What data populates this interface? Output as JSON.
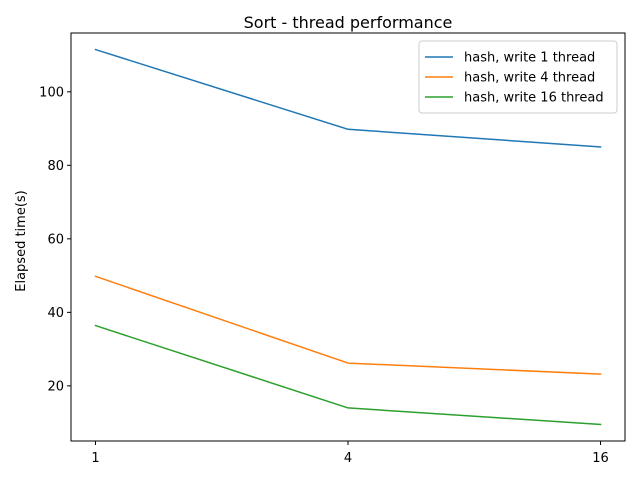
{
  "chart_data": {
    "type": "line",
    "title": "Sort - thread performance",
    "xlabel": "",
    "ylabel": "Elapsed time(s)",
    "x": [
      "1",
      "4",
      "16"
    ],
    "yticks": [
      20,
      40,
      60,
      80,
      100
    ],
    "ylim": [
      5.0,
      116.0
    ],
    "grid": false,
    "legend_position": "top-right",
    "series": [
      {
        "name": "hash, write 1 thread",
        "color": "#1f77b4",
        "values": [
          111.5,
          89.8,
          85.0
        ]
      },
      {
        "name": "hash, write 4 thread",
        "color": "#ff7f0e",
        "values": [
          49.8,
          26.2,
          23.2
        ]
      },
      {
        "name": "hash, write 16 thread",
        "color": "#2ca02c",
        "values": [
          36.4,
          14.0,
          9.5
        ]
      }
    ]
  }
}
